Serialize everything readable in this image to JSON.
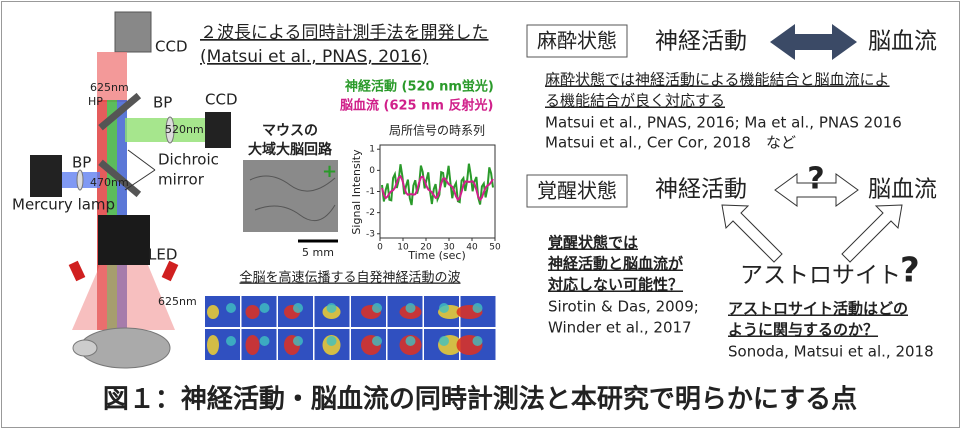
{
  "apparatus": {
    "labels": [
      "CCD",
      "625nm",
      "HP",
      "BP",
      "CCD",
      "520nm",
      "Dichroic",
      "mirror",
      "BP",
      "470nm",
      "Mercury lamp",
      "LED",
      "625nm"
    ]
  },
  "method": {
    "heading": [
      "２波長による同時計測手法を開発した",
      "(Matsui et al., PNAS, 2016)"
    ],
    "legend": [
      "神経活動 (520 nm蛍光)",
      "脳血流 (625 nm 反射光)"
    ],
    "image_label": [
      "マウスの",
      "大域大脳回路"
    ],
    "scale_bar": "5 mm",
    "plot": {
      "title": "局所信号の時系列",
      "ylabel": "Signal Intensity",
      "xlabel": "Time (sec)",
      "yticks": [
        1,
        0,
        -1,
        -2,
        -3
      ],
      "xticks": [
        0,
        10,
        20,
        30,
        40,
        50
      ]
    },
    "wave_caption": "全脳を高速伝播する自発神経活動の波"
  },
  "anesthesia": {
    "state": "麻酔状態",
    "left": "神経活動",
    "right": "脳血流",
    "finding": [
      "麻酔状態では神経活動による機能結合と脳血流によ",
      "る機能結合が良く対応する"
    ],
    "refs": [
      "Matsui et al., PNAS, 2016; Ma et al., PNAS 2016",
      "Matsui et al., Cer Cor, 2018　など"
    ]
  },
  "awake": {
    "state": "覚醒状態",
    "left": "神経活動",
    "mark": "?",
    "right": "脳血流",
    "question": [
      "覚醒状態では",
      "神経活動と脳血流が",
      "対応しない可能性？"
    ],
    "refs": [
      "Sirotin & Das, 2009;",
      "Winder et al., 2017"
    ],
    "astro": "アストロサイト",
    "astro_mark": "?",
    "astro_question": [
      "アストロサイト活動はどの",
      "ように関与するのか？"
    ],
    "astro_ref": "Sonoda, Matsui et al., 2018"
  },
  "caption": "図１：神経活動・脳血流の同時計測法と本研究で明らかにする点"
}
